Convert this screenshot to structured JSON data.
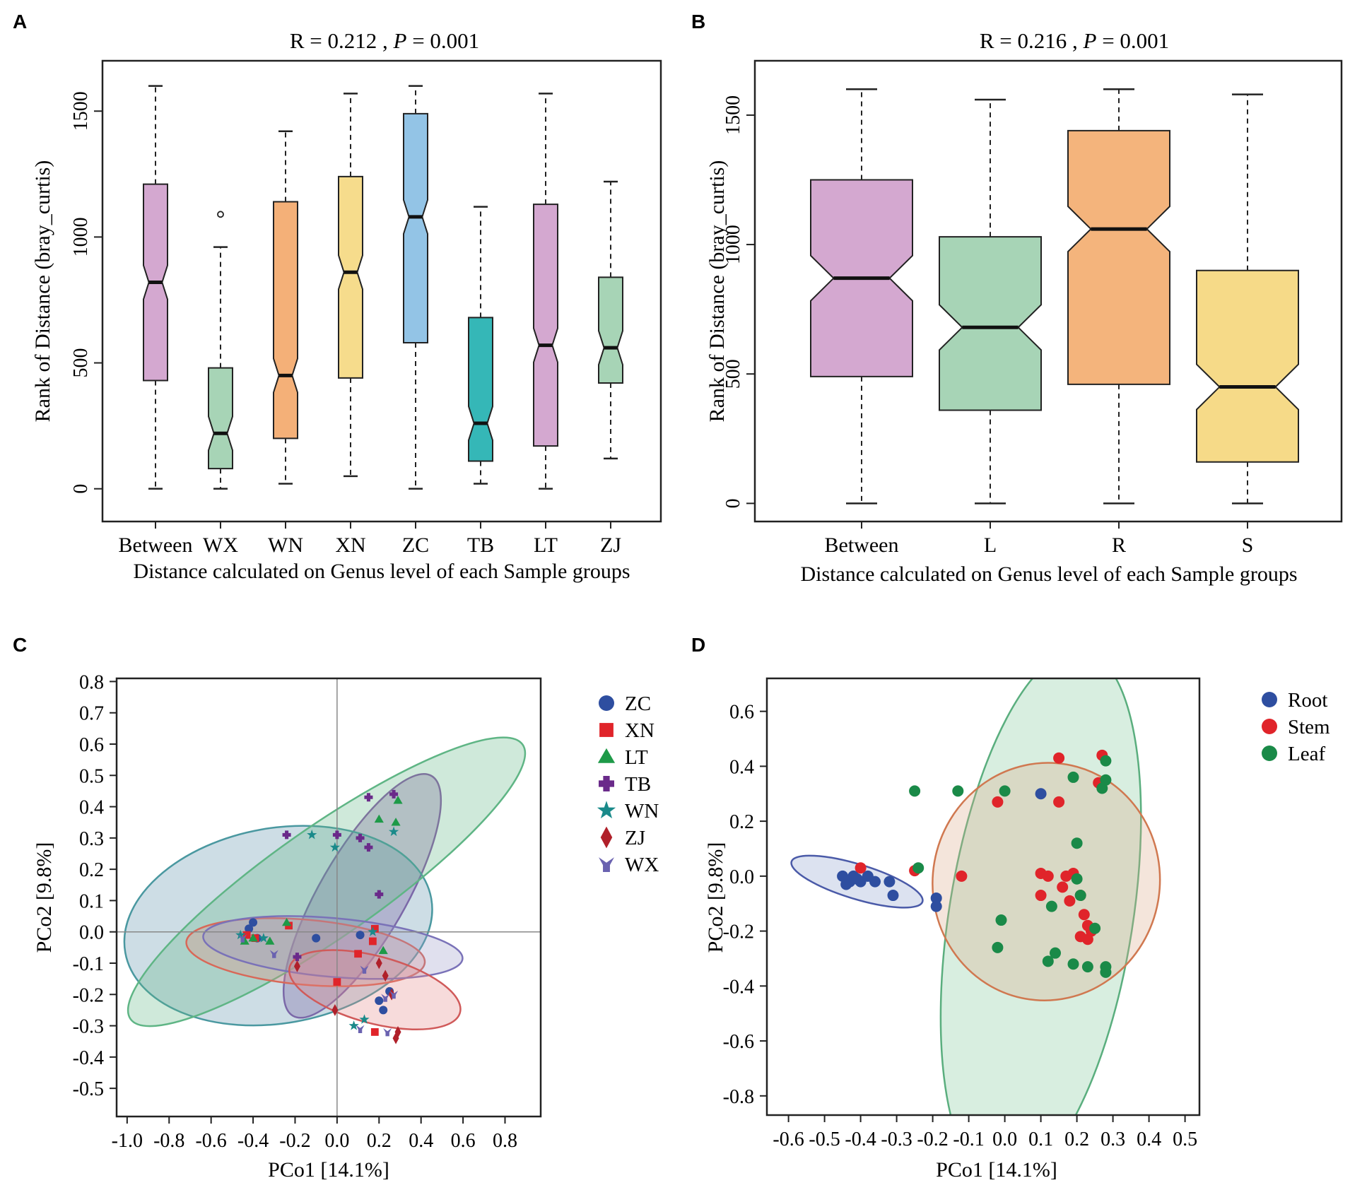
{
  "panels": {
    "a": "A",
    "b": "B",
    "c": "C",
    "d": "D"
  },
  "chart_data": [
    {
      "id": "A",
      "type": "boxplot",
      "title_prefix": "R = ",
      "r_value": "0.212",
      "title_sep": " ,  ",
      "p_label": "P",
      "p_value": "= 0.001",
      "ylabel": "Rank of Distance (bray_curtis)",
      "xlabel": "Distance calculated on Genus level of each Sample groups",
      "ylim": [
        -130,
        1700
      ],
      "yticks": [
        "0",
        "500",
        "1000",
        "1500"
      ],
      "categories": [
        "Between",
        "WX",
        "WN",
        "XN",
        "ZC",
        "TB",
        "LT",
        "ZJ"
      ],
      "boxes": [
        {
          "name": "Between",
          "color": "#d4a8d0",
          "min": 0,
          "q1": 430,
          "median": 820,
          "q3": 1210,
          "max": 1600
        },
        {
          "name": "WX",
          "color": "#a7d4b6",
          "min": 0,
          "q1": 80,
          "median": 220,
          "q3": 480,
          "max": 960,
          "outliers": [
            1090
          ]
        },
        {
          "name": "WN",
          "color": "#f4b078",
          "min": 20,
          "q1": 200,
          "median": 450,
          "q3": 1140,
          "max": 1420
        },
        {
          "name": "XN",
          "color": "#f6dc8c",
          "min": 50,
          "q1": 440,
          "median": 860,
          "q3": 1240,
          "max": 1570
        },
        {
          "name": "ZC",
          "color": "#93c4e6",
          "min": 0,
          "q1": 580,
          "median": 1080,
          "q3": 1490,
          "max": 1600
        },
        {
          "name": "TB",
          "color": "#35b7b7",
          "min": 20,
          "q1": 110,
          "median": 260,
          "q3": 680,
          "max": 1120
        },
        {
          "name": "LT",
          "color": "#d4a8d0",
          "min": 0,
          "q1": 170,
          "median": 570,
          "q3": 1130,
          "max": 1570
        },
        {
          "name": "ZJ",
          "color": "#a7d4b6",
          "min": 120,
          "q1": 420,
          "median": 560,
          "q3": 840,
          "max": 1220
        }
      ]
    },
    {
      "id": "B",
      "type": "boxplot",
      "title_prefix": "R = ",
      "r_value": "0.216",
      "title_sep": " ,  ",
      "p_label": "P",
      "p_value": "= 0.001",
      "ylabel": "Rank of Distance (bray_curtis)",
      "xlabel": "Distance calculated on Genus level of each Sample groups",
      "ylim": [
        -70,
        1710
      ],
      "yticks": [
        "0",
        "500",
        "1000",
        "1500"
      ],
      "categories": [
        "Between",
        "L",
        "R",
        "S"
      ],
      "boxes": [
        {
          "name": "Between",
          "color": "#d4a8d0",
          "min": 0,
          "q1": 490,
          "median": 870,
          "q3": 1250,
          "max": 1600
        },
        {
          "name": "L",
          "color": "#a7d4b6",
          "min": 0,
          "q1": 360,
          "median": 680,
          "q3": 1030,
          "max": 1560
        },
        {
          "name": "R",
          "color": "#f4b47c",
          "min": 0,
          "q1": 460,
          "median": 1060,
          "q3": 1440,
          "max": 1600
        },
        {
          "name": "S",
          "color": "#f6da88",
          "min": 0,
          "q1": 160,
          "median": 450,
          "q3": 900,
          "max": 1580
        }
      ]
    },
    {
      "id": "C",
      "type": "scatter",
      "xlabel": "PCo1 [14.1%]",
      "ylabel": "PCo2 [9.8%]",
      "xlim": [
        -1.05,
        0.97
      ],
      "ylim": [
        -0.59,
        0.81
      ],
      "xticks": [
        "-1.0",
        "-0.8",
        "-0.6",
        "-0.4",
        "-0.2",
        "0.0",
        "0.2",
        "0.4",
        "0.6",
        "0.8"
      ],
      "yticks": [
        "0.8",
        "0.7",
        "0.6",
        "0.5",
        "0.4",
        "0.3",
        "0.2",
        "0.1",
        "0.0",
        "-0.1",
        "-0.2",
        "-0.3",
        "-0.4",
        "-0.5"
      ],
      "legend": [
        {
          "name": "ZC",
          "color": "#2e4ea0",
          "marker": "circle"
        },
        {
          "name": "XN",
          "color": "#e0242a",
          "marker": "square"
        },
        {
          "name": "LT",
          "color": "#1e9a48",
          "marker": "triangle"
        },
        {
          "name": "TB",
          "color": "#6a2a8a",
          "marker": "plus"
        },
        {
          "name": "WN",
          "color": "#1a8a8a",
          "marker": "star"
        },
        {
          "name": "ZJ",
          "color": "#b0202a",
          "marker": "diamond"
        },
        {
          "name": "WX",
          "color": "#6a62b0",
          "marker": "tri_y"
        }
      ],
      "ellipses": [
        {
          "group": "TB",
          "fill": "#7a3a98",
          "stroke": "#8a58a8",
          "cx": 0.12,
          "cy": 0.115,
          "rx": 0.66,
          "ry": 0.205,
          "angle_deg": 60
        },
        {
          "group": "ZC",
          "fill": "#5a8fa8",
          "stroke": "#4a98a0",
          "cx": -0.28,
          "cy": 0.02,
          "rx": 0.74,
          "ry": 0.465,
          "angle_deg": 10
        },
        {
          "group": "LT",
          "fill": "#5fb585",
          "stroke": "#5fb585",
          "cx": -0.05,
          "cy": 0.16,
          "rx": 1.14,
          "ry": 0.26,
          "angle_deg": 35
        },
        {
          "group": "XN",
          "fill": "#e88a80",
          "stroke": "#d86858",
          "cx": -0.15,
          "cy": -0.065,
          "rx": 0.57,
          "ry": 0.155,
          "angle_deg": -5
        },
        {
          "group": "WX",
          "fill": "#9898c8",
          "stroke": "#7a72b8",
          "cx": -0.02,
          "cy": -0.05,
          "rx": 0.62,
          "ry": 0.14,
          "angle_deg": -5
        },
        {
          "group": "ZJ",
          "fill": "#e48888",
          "stroke": "#d05a5a",
          "cx": 0.18,
          "cy": -0.185,
          "rx": 0.42,
          "ry": 0.16,
          "angle_deg": -15
        }
      ],
      "series": [
        {
          "name": "ZC",
          "points": [
            [
              -0.4,
              0.03
            ],
            [
              -0.42,
              0.01
            ],
            [
              -0.1,
              -0.02
            ],
            [
              0.25,
              -0.19
            ],
            [
              0.2,
              -0.22
            ],
            [
              0.22,
              -0.25
            ],
            [
              0.11,
              -0.01
            ],
            [
              -0.38,
              -0.02
            ]
          ]
        },
        {
          "name": "XN",
          "points": [
            [
              -0.23,
              0.02
            ],
            [
              -0.43,
              -0.01
            ],
            [
              -0.39,
              -0.02
            ],
            [
              0.1,
              -0.07
            ],
            [
              0.17,
              -0.03
            ],
            [
              0.18,
              0.01
            ],
            [
              0.18,
              -0.32
            ],
            [
              0.0,
              -0.16
            ]
          ]
        },
        {
          "name": "LT",
          "points": [
            [
              0.2,
              0.36
            ],
            [
              0.28,
              0.35
            ],
            [
              0.29,
              0.42
            ],
            [
              0.22,
              -0.06
            ],
            [
              -0.4,
              -0.02
            ],
            [
              -0.32,
              -0.03
            ],
            [
              -0.24,
              0.03
            ],
            [
              -0.44,
              -0.03
            ]
          ]
        },
        {
          "name": "TB",
          "points": [
            [
              -0.24,
              0.31
            ],
            [
              0.0,
              0.31
            ],
            [
              0.11,
              0.3
            ],
            [
              0.15,
              0.27
            ],
            [
              0.15,
              0.43
            ],
            [
              0.27,
              0.44
            ],
            [
              0.2,
              0.12
            ],
            [
              -0.19,
              -0.08
            ]
          ]
        },
        {
          "name": "WN",
          "points": [
            [
              -0.12,
              0.31
            ],
            [
              -0.01,
              0.27
            ],
            [
              0.27,
              0.32
            ],
            [
              -0.35,
              -0.02
            ],
            [
              -0.46,
              -0.01
            ],
            [
              0.17,
              0.0
            ],
            [
              0.13,
              -0.28
            ],
            [
              0.08,
              -0.3
            ]
          ]
        },
        {
          "name": "ZJ",
          "points": [
            [
              -0.19,
              -0.11
            ],
            [
              0.2,
              -0.1
            ],
            [
              0.23,
              -0.14
            ],
            [
              -0.01,
              -0.25
            ],
            [
              0.28,
              -0.34
            ],
            [
              0.29,
              -0.32
            ],
            [
              0.26,
              -0.2
            ]
          ]
        },
        {
          "name": "WX",
          "points": [
            [
              -0.3,
              -0.07
            ],
            [
              0.13,
              -0.12
            ],
            [
              0.23,
              -0.21
            ],
            [
              0.24,
              -0.32
            ],
            [
              0.11,
              -0.31
            ],
            [
              0.27,
              -0.2
            ],
            [
              -0.45,
              -0.02
            ]
          ]
        }
      ]
    },
    {
      "id": "D",
      "type": "scatter",
      "xlabel": "PCo1 [14.1%]",
      "ylabel": "PCo2 [9.8%]",
      "xlim": [
        -0.66,
        0.54
      ],
      "ylim": [
        -0.87,
        0.72
      ],
      "xticks": [
        "-0.6",
        "-0.5",
        "-0.4",
        "-0.3",
        "-0.2",
        "-0.1",
        "0.0",
        "0.1",
        "0.2",
        "0.3",
        "0.4",
        "0.5"
      ],
      "yticks": [
        "0.6",
        "0.4",
        "0.2",
        "0.0",
        "-0.2",
        "-0.4",
        "-0.6",
        "-0.8"
      ],
      "legend": [
        {
          "name": "Root",
          "color": "#2e4ea0",
          "marker": "circle"
        },
        {
          "name": "Stem",
          "color": "#e0242a",
          "marker": "circle"
        },
        {
          "name": "Leaf",
          "color": "#1a8a48",
          "marker": "circle"
        }
      ],
      "ellipses": [
        {
          "group": "Leaf",
          "fill": "#7fc898",
          "stroke": "#5aae7e",
          "cx": 0.1,
          "cy": -0.15,
          "rx": 0.75,
          "ry": 0.255,
          "angle_deg": 81
        },
        {
          "group": "Stem",
          "fill": "#d9a888",
          "stroke": "#d07850",
          "cx": 0.115,
          "cy": -0.02,
          "rx": 0.33,
          "ry": 0.315,
          "angle_deg": 80
        },
        {
          "group": "Root",
          "fill": "#8ca0cc",
          "stroke": "#4a5aa8",
          "cx": -0.41,
          "cy": -0.02,
          "rx": 0.19,
          "ry": 0.048,
          "angle_deg": -17
        }
      ],
      "series": [
        {
          "name": "Root",
          "points": [
            [
              -0.45,
              0.0
            ],
            [
              -0.44,
              -0.03
            ],
            [
              -0.43,
              -0.02
            ],
            [
              -0.42,
              0.0
            ],
            [
              -0.41,
              -0.01
            ],
            [
              -0.4,
              -0.02
            ],
            [
              -0.38,
              0.0
            ],
            [
              -0.36,
              -0.02
            ],
            [
              -0.32,
              -0.02
            ],
            [
              -0.31,
              -0.07
            ],
            [
              -0.19,
              -0.08
            ],
            [
              -0.19,
              -0.11
            ],
            [
              0.1,
              0.3
            ]
          ]
        },
        {
          "name": "Stem",
          "points": [
            [
              -0.4,
              0.03
            ],
            [
              -0.25,
              0.02
            ],
            [
              -0.12,
              0.0
            ],
            [
              -0.02,
              0.27
            ],
            [
              0.15,
              0.43
            ],
            [
              0.15,
              0.27
            ],
            [
              0.27,
              0.44
            ],
            [
              0.26,
              0.34
            ],
            [
              0.1,
              0.01
            ],
            [
              0.12,
              0.0
            ],
            [
              0.17,
              0.0
            ],
            [
              0.19,
              0.01
            ],
            [
              0.1,
              -0.07
            ],
            [
              0.16,
              -0.04
            ],
            [
              0.18,
              -0.09
            ],
            [
              0.21,
              -0.07
            ],
            [
              0.22,
              -0.14
            ],
            [
              0.23,
              -0.18
            ],
            [
              0.24,
              -0.2
            ],
            [
              0.21,
              -0.22
            ],
            [
              0.23,
              -0.23
            ]
          ]
        },
        {
          "name": "Leaf",
          "points": [
            [
              -0.25,
              0.31
            ],
            [
              -0.24,
              0.03
            ],
            [
              -0.13,
              0.31
            ],
            [
              0.0,
              0.31
            ],
            [
              0.19,
              0.36
            ],
            [
              0.28,
              0.42
            ],
            [
              0.28,
              0.35
            ],
            [
              0.27,
              0.32
            ],
            [
              0.2,
              0.12
            ],
            [
              0.2,
              -0.01
            ],
            [
              0.21,
              -0.07
            ],
            [
              0.13,
              -0.11
            ],
            [
              0.25,
              -0.19
            ],
            [
              -0.01,
              -0.16
            ],
            [
              -0.02,
              -0.26
            ],
            [
              0.14,
              -0.28
            ],
            [
              0.12,
              -0.31
            ],
            [
              0.19,
              -0.32
            ],
            [
              0.23,
              -0.33
            ],
            [
              0.28,
              -0.33
            ],
            [
              0.28,
              -0.35
            ]
          ]
        }
      ]
    }
  ]
}
